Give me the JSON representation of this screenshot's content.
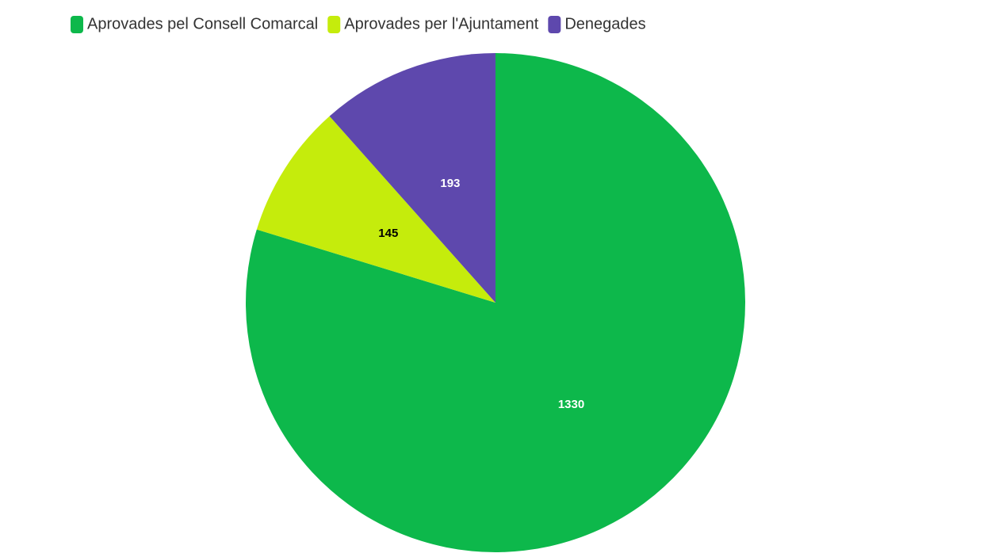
{
  "chart_data": {
    "type": "pie",
    "categories": [
      "Aprovades pel Consell Comarcal",
      "Aprovades per l'Ajuntament",
      "Denegades"
    ],
    "values": [
      1330,
      145,
      193
    ],
    "colors": [
      "#0db84b",
      "#c5ec0c",
      "#5e48ad"
    ],
    "legend": "top-left"
  }
}
